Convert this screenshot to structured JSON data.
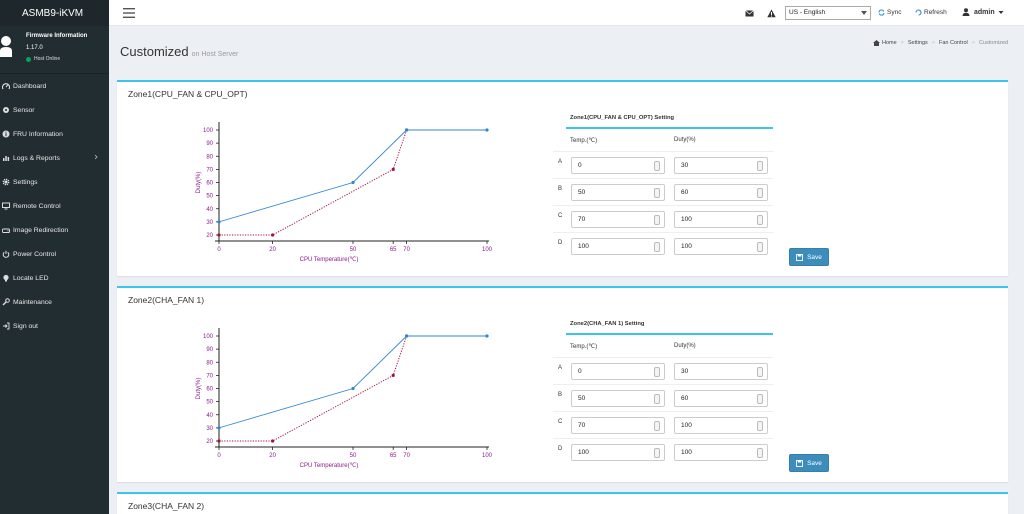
{
  "app": {
    "brand": "ASMB9-iKVM"
  },
  "user_panel": {
    "title": "Firmware Information",
    "version": "1.17.0",
    "status": "Host Online",
    "status_color": "#00a65a"
  },
  "menu": [
    {
      "label": "Dashboard",
      "icon": "dashboard-icon"
    },
    {
      "label": "Sensor",
      "icon": "sensor-icon"
    },
    {
      "label": "FRU Information",
      "icon": "info-icon"
    },
    {
      "label": "Logs & Reports",
      "icon": "chart-icon",
      "has_submenu": true
    },
    {
      "label": "Settings",
      "icon": "gear-icon"
    },
    {
      "label": "Remote Control",
      "icon": "monitor-icon"
    },
    {
      "label": "Image Redirection",
      "icon": "drive-icon"
    },
    {
      "label": "Power Control",
      "icon": "power-icon"
    },
    {
      "label": "Locate LED",
      "icon": "led-icon"
    },
    {
      "label": "Maintenance",
      "icon": "wrench-icon"
    },
    {
      "label": "Sign out",
      "icon": "signout-icon"
    }
  ],
  "header": {
    "language": "US - English",
    "sync_label": "Sync",
    "refresh_label": "Refresh",
    "user": "admin"
  },
  "page": {
    "title": "Customized",
    "subtitle": "on Host Server"
  },
  "breadcrumb": [
    "Home",
    "Settings",
    "Fan Control",
    "Customized"
  ],
  "colors": {
    "accent": "#3cc5eb",
    "primary": "#3c8dbc",
    "line_blue": "#2f86d4",
    "line_red": "#a01040",
    "axis_purple": "#8b1a8b"
  },
  "zones": [
    {
      "title": "Zone1(CPU_FAN & CPU_OPT)",
      "table_title": "Zone1(CPU_FAN & CPU_OPT) Setting",
      "col_temp": "Temp.(℃)",
      "col_duty": "Duty(%)",
      "rows": [
        {
          "label": "A",
          "temp": "0",
          "duty": "30"
        },
        {
          "label": "B",
          "temp": "50",
          "duty": "60"
        },
        {
          "label": "C",
          "temp": "70",
          "duty": "100"
        },
        {
          "label": "D",
          "temp": "100",
          "duty": "100"
        }
      ],
      "save_label": "Save"
    },
    {
      "title": "Zone2(CHA_FAN 1)",
      "table_title": "Zone2(CHA_FAN 1) Setting",
      "col_temp": "Temp.(℃)",
      "col_duty": "Duty(%)",
      "rows": [
        {
          "label": "A",
          "temp": "0",
          "duty": "30"
        },
        {
          "label": "B",
          "temp": "50",
          "duty": "60"
        },
        {
          "label": "C",
          "temp": "70",
          "duty": "100"
        },
        {
          "label": "D",
          "temp": "100",
          "duty": "100"
        }
      ],
      "save_label": "Save"
    },
    {
      "title": "Zone3(CHA_FAN 2)"
    }
  ],
  "chart_data": [
    {
      "type": "line",
      "xlabel": "CPU Temperature(℃)",
      "ylabel": "Duty(%)",
      "x_ticks": [
        0,
        20,
        50,
        65,
        70,
        100
      ],
      "y_ticks": [
        20,
        30,
        40,
        50,
        60,
        70,
        80,
        90,
        100
      ],
      "xlim": [
        0,
        100
      ],
      "ylim": [
        20,
        100
      ],
      "series": [
        {
          "color": "#2f86d4",
          "style": "solid",
          "x": [
            0,
            50,
            70,
            100
          ],
          "y": [
            30,
            60,
            100,
            100
          ]
        },
        {
          "color": "#a01040",
          "style": "dotted",
          "x": [
            0,
            20,
            65,
            70
          ],
          "y": [
            20,
            20,
            70,
            100
          ]
        }
      ]
    },
    {
      "type": "line",
      "xlabel": "CPU Temperature(℃)",
      "ylabel": "Duty(%)",
      "x_ticks": [
        0,
        20,
        50,
        65,
        70,
        100
      ],
      "y_ticks": [
        20,
        30,
        40,
        50,
        60,
        70,
        80,
        90,
        100
      ],
      "xlim": [
        0,
        100
      ],
      "ylim": [
        20,
        100
      ],
      "series": [
        {
          "color": "#2f86d4",
          "style": "solid",
          "x": [
            0,
            50,
            70,
            100
          ],
          "y": [
            30,
            60,
            100,
            100
          ]
        },
        {
          "color": "#a01040",
          "style": "dotted",
          "x": [
            0,
            20,
            65,
            70
          ],
          "y": [
            20,
            20,
            70,
            100
          ]
        }
      ]
    }
  ]
}
